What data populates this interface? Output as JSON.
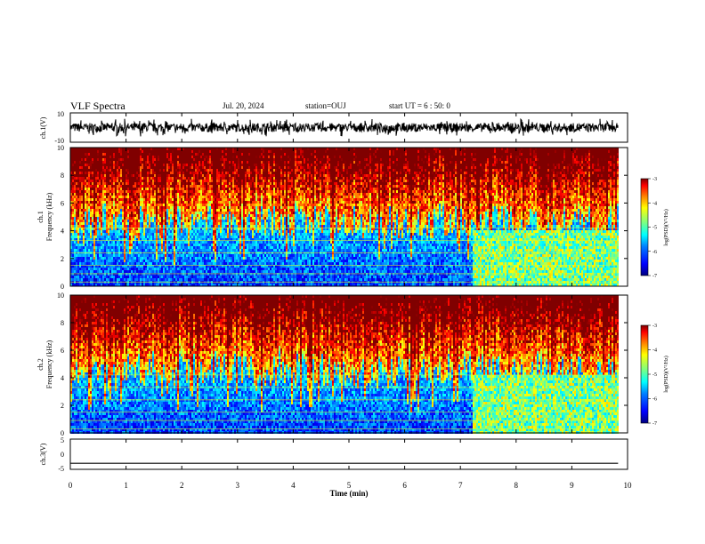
{
  "header": {
    "title": "VLF Spectra",
    "date": "Jul. 20, 2024",
    "station": "station=OUJ",
    "start_ut": "start UT =  6 : 50: 0"
  },
  "chart_data": [
    {
      "type": "line",
      "panel": "ch1-waveform",
      "ylabel": "ch.1(V)",
      "ylim": [
        -10,
        10
      ],
      "yticks": [
        "10",
        "-10"
      ],
      "xlim": [
        0,
        10
      ],
      "data_end_min": 9.83,
      "series": [
        {
          "values_description_omitted": true,
          "level_range_V": [
            -4,
            4
          ]
        }
      ]
    },
    {
      "type": "heatmap",
      "panel": "ch1-spectrogram",
      "ylabel": "ch.1\nFrequency (kHz)",
      "ylim": [
        0,
        10
      ],
      "yticks": [
        "0",
        "2",
        "4",
        "6",
        "8",
        "10"
      ],
      "xlim": [
        0,
        10
      ],
      "data_end_min": 9.83,
      "change_time_min": 7.2,
      "colorbar": {
        "label": "log(PSD)(V²/Hz)",
        "range": [
          -7,
          -3
        ],
        "ticks": [
          "-3",
          "-4",
          "-5",
          "-6",
          "-7"
        ]
      }
    },
    {
      "type": "heatmap",
      "panel": "ch2-spectrogram",
      "ylabel": "ch.2\nFrequency (kHz)",
      "ylim": [
        0,
        10
      ],
      "yticks": [
        "0",
        "2",
        "4",
        "6",
        "8",
        "10"
      ],
      "xlim": [
        0,
        10
      ],
      "data_end_min": 9.83,
      "change_time_min": 7.2,
      "colorbar": {
        "label": "log(PSD)(V²/Hz)",
        "range": [
          -7,
          -3
        ],
        "ticks": [
          "-3",
          "-4",
          "-5",
          "-6",
          "-7"
        ]
      }
    },
    {
      "type": "line",
      "panel": "ch3-waveform",
      "ylabel": "ch.3(V)",
      "ylim": [
        -5,
        5
      ],
      "yticks": [
        "5",
        "0",
        "-5"
      ],
      "xlim": [
        0,
        10
      ],
      "data_end_min": 9.83,
      "series": [
        {
          "constant_value_V": -3
        }
      ]
    }
  ],
  "x_axis": {
    "label": "Time (min)",
    "ticks": [
      "0",
      "1",
      "2",
      "3",
      "4",
      "5",
      "6",
      "7",
      "8",
      "9",
      "10"
    ]
  },
  "colors": {
    "jet": [
      "#00007f",
      "#0000ff",
      "#007fff",
      "#00ffff",
      "#7fff7f",
      "#ffff00",
      "#ff7f00",
      "#ff0000",
      "#7f0000"
    ]
  }
}
